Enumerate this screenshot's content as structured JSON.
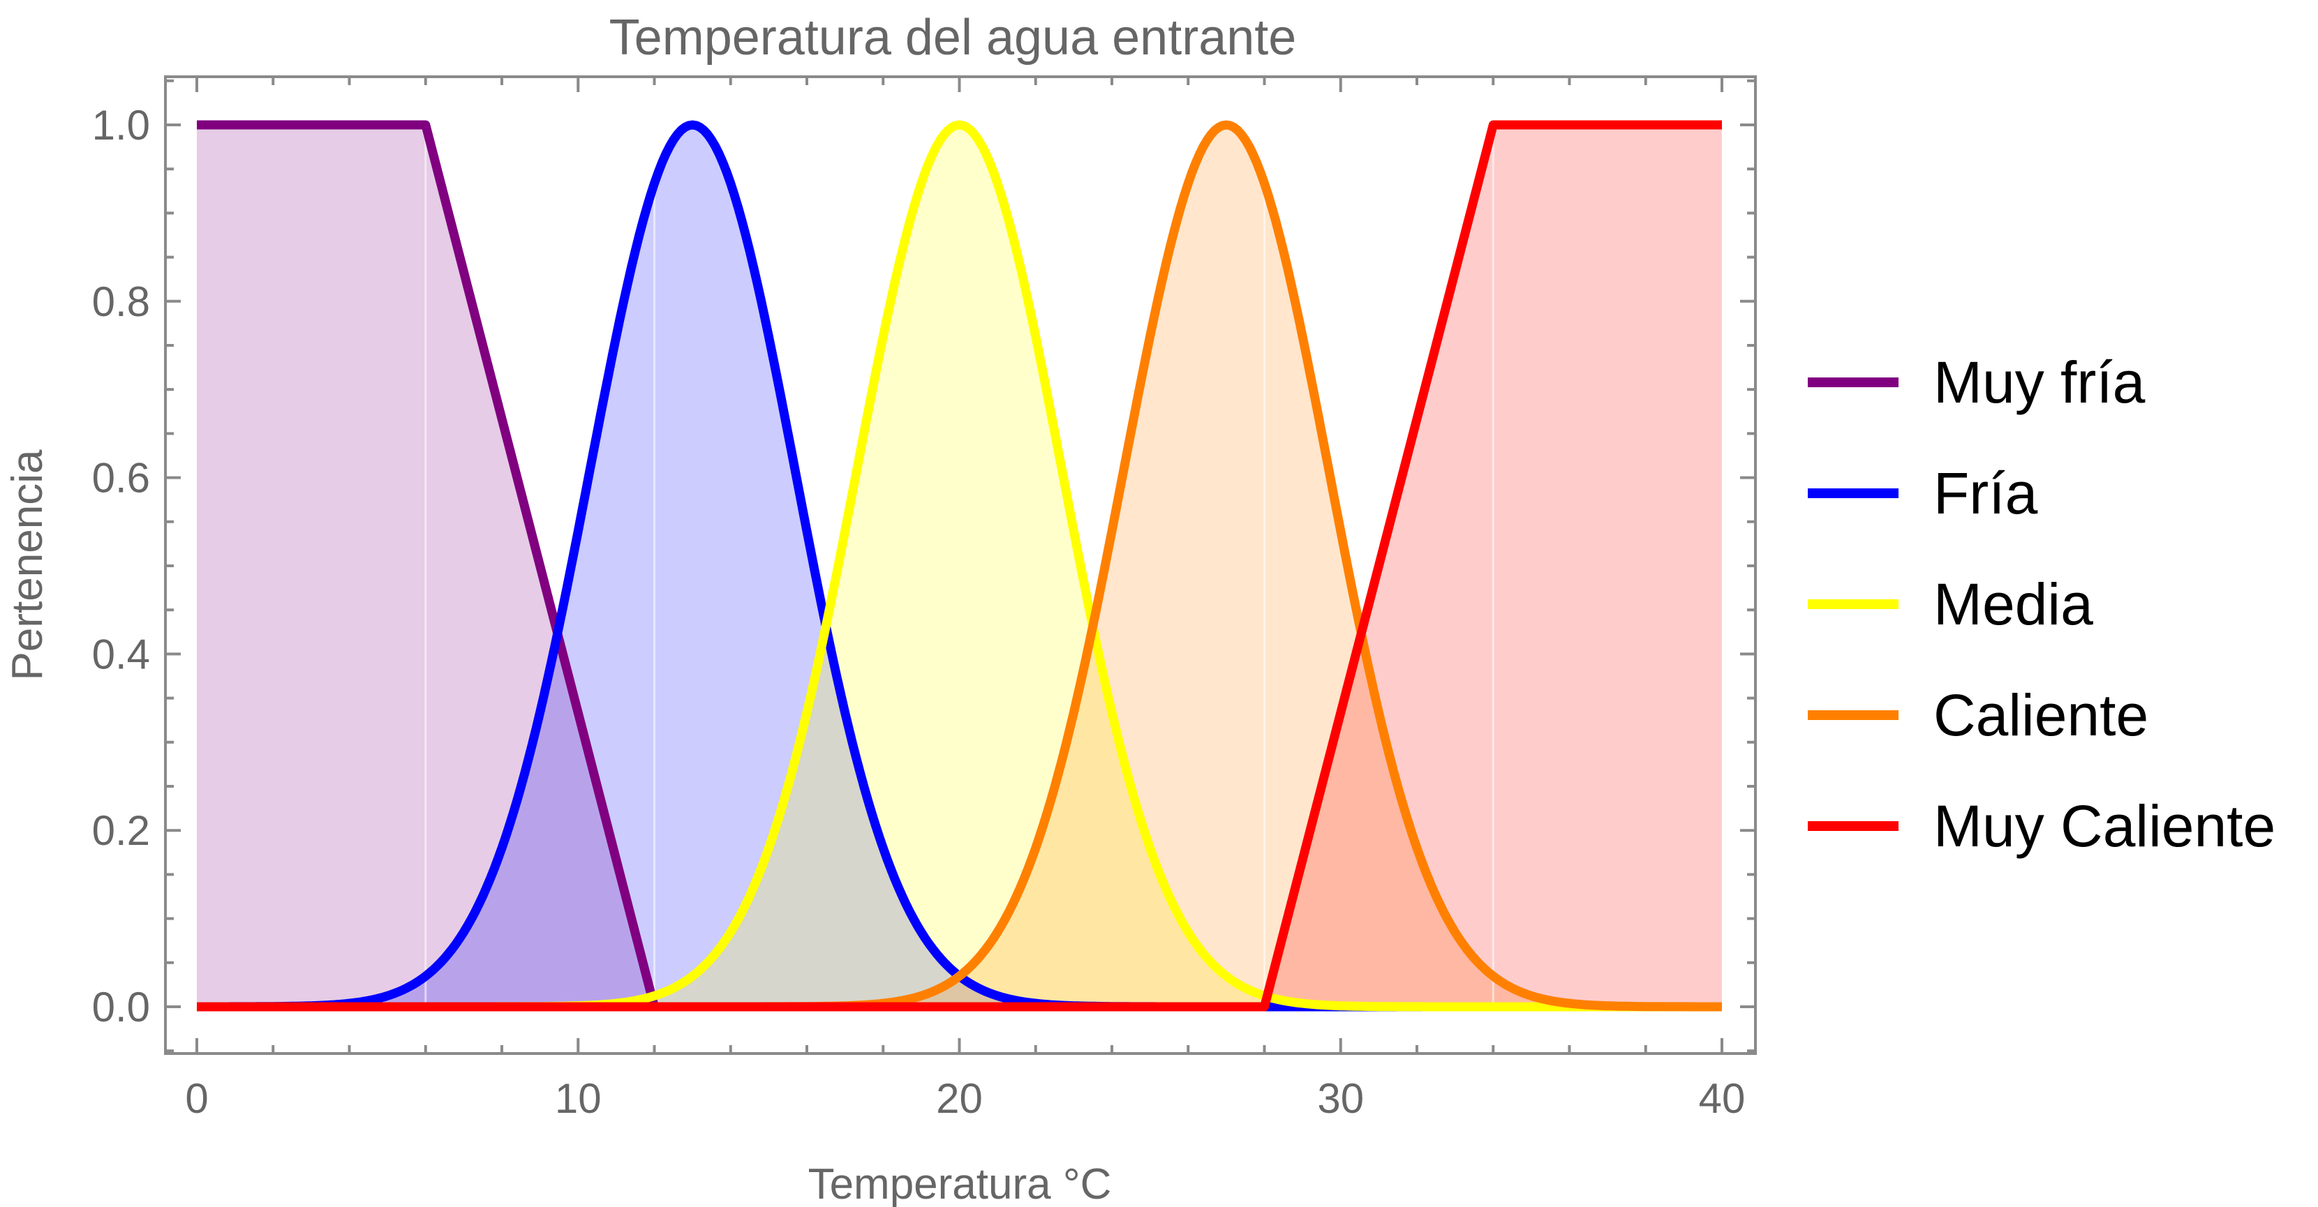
{
  "chart_data": {
    "type": "area",
    "title": "Temperatura del agua entrante",
    "xlabel": "Temperatura °C",
    "ylabel": "Pertenencia",
    "xlim": [
      0,
      40
    ],
    "ylim": [
      -0.05,
      1.05
    ],
    "x_ticks": [
      0,
      10,
      20,
      30,
      40
    ],
    "y_ticks": [
      0.0,
      0.2,
      0.4,
      0.6,
      0.8,
      1.0
    ],
    "x_tick_labels": [
      "0",
      "10",
      "20",
      "30",
      "40"
    ],
    "y_tick_labels": [
      "0.0",
      "0.2",
      "0.4",
      "0.6",
      "0.8",
      "1.0"
    ],
    "legend_position": "right",
    "series": [
      {
        "name": "Muy fría",
        "color": "#800080",
        "fill": "#e6cde6",
        "shape": "trapezoid",
        "points": [
          [
            0,
            1
          ],
          [
            6,
            1
          ],
          [
            12,
            0
          ],
          [
            40,
            0
          ]
        ]
      },
      {
        "name": "Fría",
        "color": "#0000ff",
        "fill": "#c8c8ff",
        "shape": "gaussian",
        "center": 13,
        "sigma": 2.7
      },
      {
        "name": "Media",
        "color": "#ffff00",
        "fill": "#ffffcc",
        "shape": "gaussian",
        "center": 20,
        "sigma": 2.7
      },
      {
        "name": "Caliente",
        "color": "#ff8000",
        "fill": "#ffe6cc",
        "shape": "gaussian",
        "center": 27,
        "sigma": 2.7
      },
      {
        "name": "Muy Caliente",
        "color": "#ff0000",
        "fill": "#ffcccc",
        "shape": "trapezoid",
        "points": [
          [
            0,
            0
          ],
          [
            28,
            0
          ],
          [
            34,
            1
          ],
          [
            40,
            1
          ]
        ]
      }
    ]
  }
}
